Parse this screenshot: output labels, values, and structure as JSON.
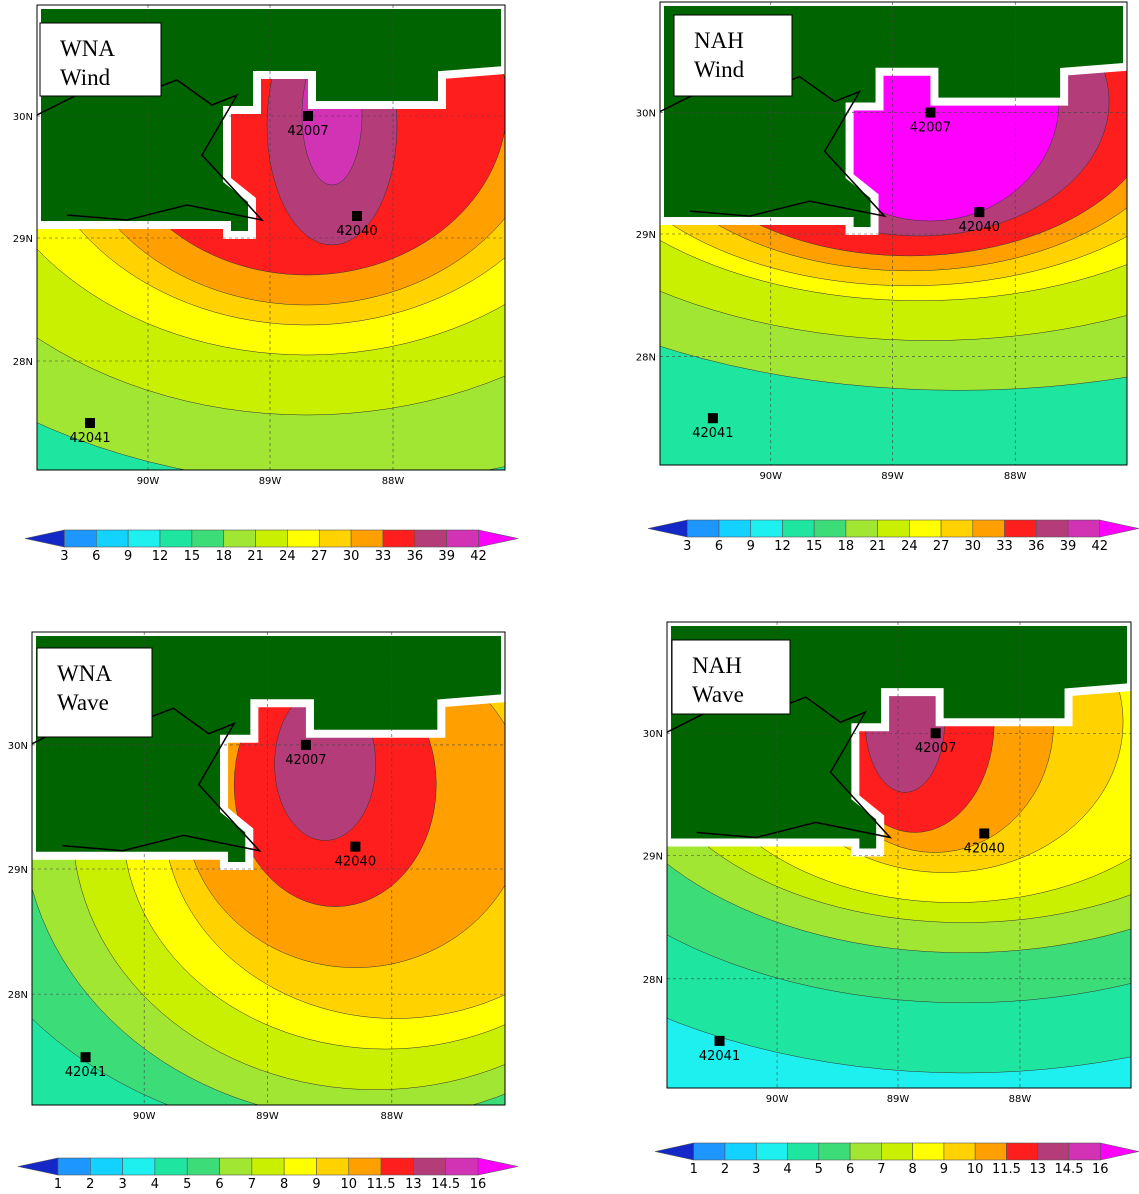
{
  "palette": [
    "#1428c8",
    "#1e96ff",
    "#14d2ff",
    "#1ef0f0",
    "#1ee6a0",
    "#3cdc78",
    "#a0e632",
    "#c8f000",
    "#ffff00",
    "#ffd200",
    "#ffa000",
    "#ff1e1e",
    "#b43c78",
    "#d232b4",
    "#ff00ff"
  ],
  "panels": [
    {
      "label": [
        "WNA",
        "Wind"
      ],
      "yticks": [
        "30N",
        "29N",
        "28N"
      ],
      "xticks": [
        "90W",
        "89W",
        "88W"
      ],
      "buoys": [
        "42007",
        "42040",
        "42041"
      ],
      "colorbar_labels": [
        3,
        6,
        9,
        12,
        15,
        18,
        21,
        24,
        27,
        30,
        33,
        36,
        39,
        42
      ]
    },
    {
      "label": [
        "NAH",
        "Wind"
      ],
      "yticks": [
        "30N",
        "29N",
        "28N"
      ],
      "xticks": [
        "90W",
        "89W",
        "88W"
      ],
      "buoys": [
        "42007",
        "42040",
        "42041"
      ],
      "colorbar_labels": [
        3,
        6,
        9,
        12,
        15,
        18,
        21,
        24,
        27,
        30,
        33,
        36,
        39,
        42
      ]
    },
    {
      "label": [
        "WNA",
        "Wave"
      ],
      "yticks": [
        "30N",
        "29N",
        "28N"
      ],
      "xticks": [
        "90W",
        "89W",
        "88W"
      ],
      "buoys": [
        "42007",
        "42040",
        "42041"
      ],
      "colorbar_labels": [
        1,
        2,
        3,
        4,
        5,
        6,
        7,
        8,
        9,
        10,
        11.5,
        13,
        14.5,
        16
      ]
    },
    {
      "label": [
        "NAH",
        "Wave"
      ],
      "yticks": [
        "30N",
        "29N",
        "28N"
      ],
      "xticks": [
        "90W",
        "89W",
        "88W"
      ],
      "buoys": [
        "42007",
        "42040",
        "42041"
      ],
      "colorbar_labels": [
        1,
        2,
        3,
        4,
        5,
        6,
        7,
        8,
        9,
        10,
        11.5,
        13,
        14.5,
        16
      ]
    }
  ]
}
